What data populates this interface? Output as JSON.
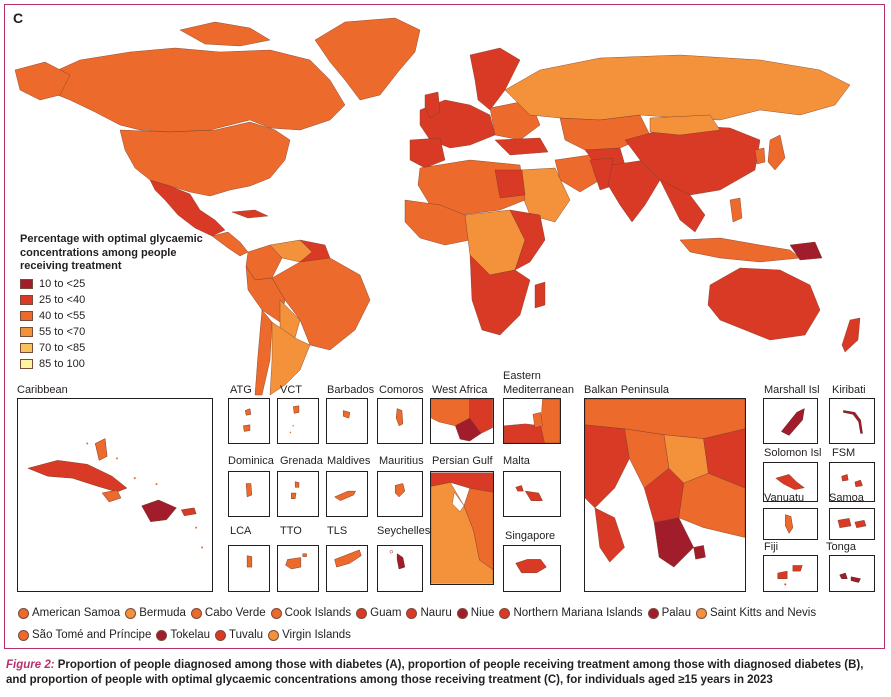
{
  "panel_letter": "C",
  "legend": {
    "title_lines": [
      "Percentage with optimal glycaemic",
      "concentrations among people",
      "receiving treatment"
    ],
    "items": [
      {
        "label": "10 to <25",
        "color": "#a11d2b"
      },
      {
        "label": "25 to <40",
        "color": "#d93a26"
      },
      {
        "label": "40 to <55",
        "color": "#ec6a2c"
      },
      {
        "label": "55 to <70",
        "color": "#f3923b"
      },
      {
        "label": "70 to <85",
        "color": "#f8c160"
      },
      {
        "label": "85 to 100",
        "color": "#fcf3a3"
      }
    ]
  },
  "insets": {
    "caribbean": "Caribbean",
    "atg": "ATG",
    "vct": "VCT",
    "barbados": "Barbados",
    "comoros": "Comoros",
    "west_africa": "West Africa",
    "eastern_med_1": "Eastern",
    "eastern_med_2": "Mediterranean",
    "balkan": "Balkan Peninsula",
    "marshall": "Marshall Isl",
    "kiribati": "Kiribati",
    "dominica": "Dominica",
    "grenada": "Grenada",
    "maldives": "Maldives",
    "mauritius": "Mauritius",
    "persian_gulf": "Persian Gulf",
    "malta": "Malta",
    "solomon": "Solomon Isl",
    "fsm": "FSM",
    "vanuatu": "Vanuatu",
    "samoa": "Samoa",
    "lca": "LCA",
    "tto": "TTO",
    "tls": "TLS",
    "seychelles": "Seychelles",
    "singapore": "Singapore",
    "fiji": "Fiji",
    "tonga": "Tonga"
  },
  "small_states": [
    {
      "label": "American Samoa",
      "color": "#ec6a2c"
    },
    {
      "label": "Bermuda",
      "color": "#f3923b"
    },
    {
      "label": "Cabo Verde",
      "color": "#ec6a2c"
    },
    {
      "label": "Cook Islands",
      "color": "#ec6a2c"
    },
    {
      "label": "Guam",
      "color": "#d93a26"
    },
    {
      "label": "Nauru",
      "color": "#d93a26"
    },
    {
      "label": "Niue",
      "color": "#a11d2b"
    },
    {
      "label": "Northern Mariana Islands",
      "color": "#d93a26"
    },
    {
      "label": "Palau",
      "color": "#a11d2b"
    },
    {
      "label": "Saint Kitts and Nevis",
      "color": "#f3923b"
    },
    {
      "label": "São Tomé and Príncipe",
      "color": "#ec6a2c"
    },
    {
      "label": "Tokelau",
      "color": "#a11d2b"
    },
    {
      "label": "Tuvalu",
      "color": "#d93a26"
    },
    {
      "label": "Virgin Islands",
      "color": "#f3923b"
    }
  ],
  "caption": {
    "figure_label": "Figure 2:",
    "text": " Proportion of people diagnosed among those with diabetes (A), proportion of people receiving treatment among those with diagnosed diabetes (B), and proportion of people with optimal glycaemic concentrations among those receiving treatment (C), for individuals aged ≥15 years in 2023"
  }
}
